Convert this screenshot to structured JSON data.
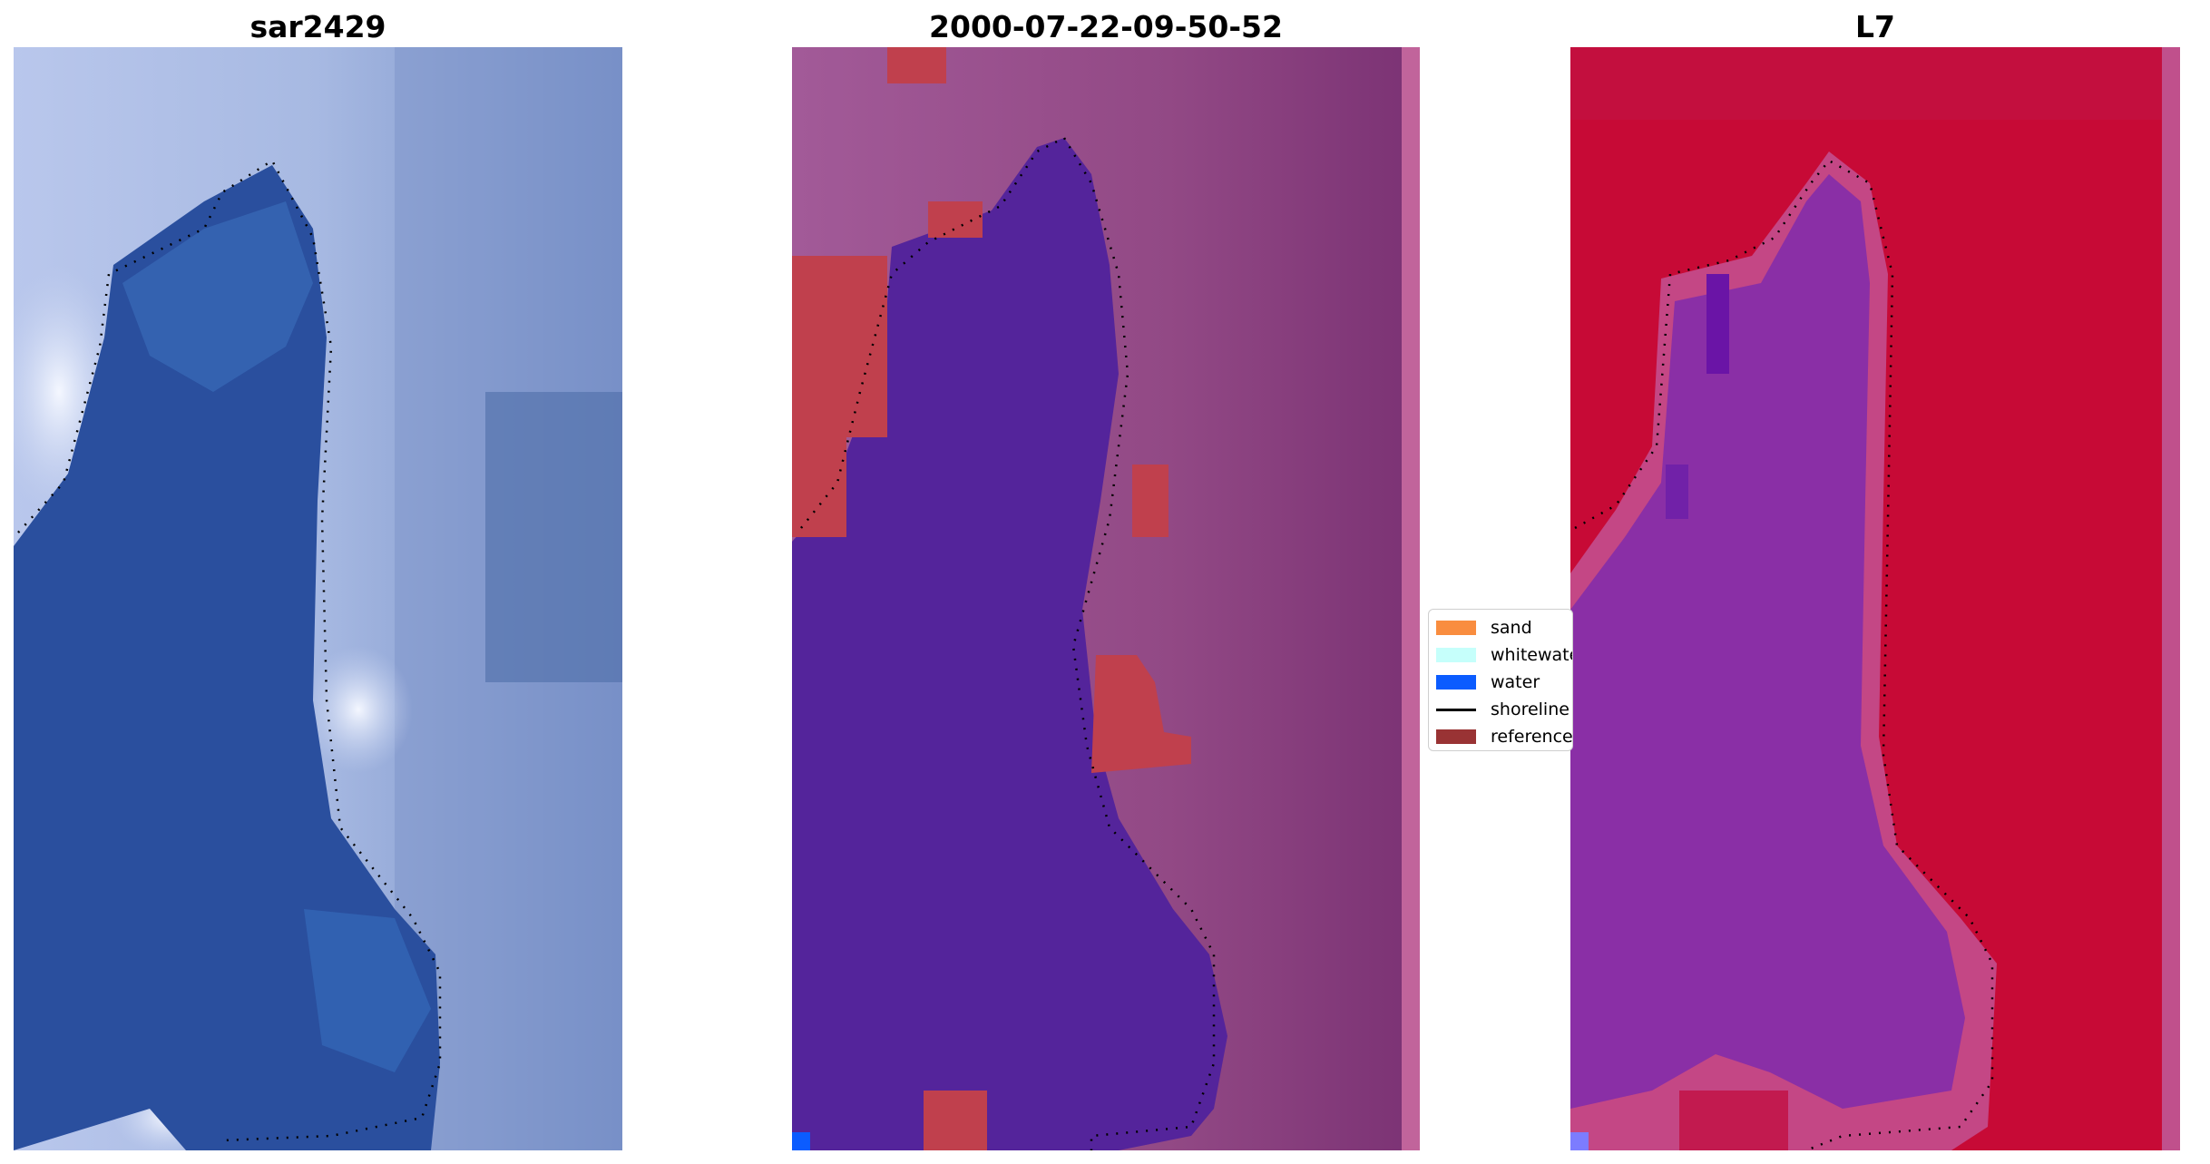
{
  "panels": [
    {
      "title": "sar2429",
      "kind": "rgb"
    },
    {
      "title": "2000-07-22-09-50-52",
      "kind": "classified"
    },
    {
      "title": "L7",
      "kind": "index"
    }
  ],
  "legend": {
    "items": [
      {
        "label": "sand",
        "color": "#f98d3f",
        "type": "patch"
      },
      {
        "label": "whitewater",
        "color": "#c6fffb",
        "type": "patch"
      },
      {
        "label": "water",
        "color": "#0b5cff",
        "type": "patch"
      },
      {
        "label": "shoreline",
        "color": "#000000",
        "type": "line"
      },
      {
        "label": "reference",
        "color": "#993334",
        "type": "patch"
      }
    ]
  },
  "colors": {
    "rgb_water": "#2a4f9e",
    "rgb_land": "#9fb0dd",
    "rgb_bright": "#eef3ff",
    "classified_water": "#54249b",
    "classified_land": "#9d4f8f",
    "classified_reference": "#c0404d",
    "index_water": "#8a2fa6",
    "index_land": "#c70a36"
  }
}
